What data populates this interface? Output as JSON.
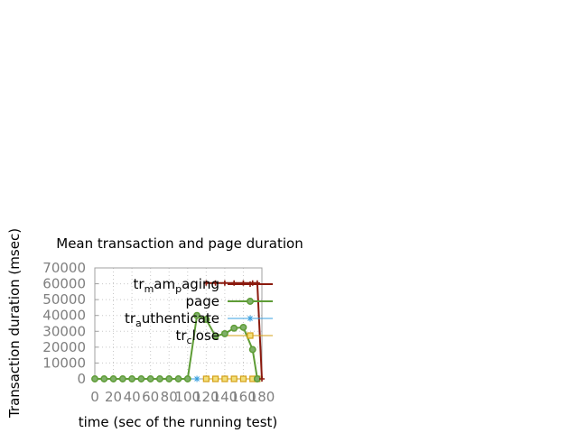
{
  "chart_data": {
    "type": "line",
    "title": "Mean transaction and page duration",
    "xlabel": "time (sec of the running test)",
    "ylabel": "Transaction duration (msec)",
    "xlim": [
      0,
      180
    ],
    "ylim": [
      0,
      70000
    ],
    "x_ticks": [
      "0",
      "20",
      "40",
      "60",
      "80",
      "100",
      "120",
      "140",
      "160",
      "180"
    ],
    "y_ticks": [
      "0",
      "10000",
      "20000",
      "30000",
      "40000",
      "50000",
      "60000",
      "70000"
    ],
    "grid": true,
    "legend_position": "top-right",
    "series": [
      {
        "name": "tr_mam_paging",
        "legend_parts": [
          [
            "tr",
            "normal"
          ],
          [
            "m",
            "sub"
          ],
          [
            "am",
            "normal"
          ],
          [
            "p",
            "sub"
          ],
          [
            "aging",
            "normal"
          ]
        ],
        "color": "#8b1a0e",
        "marker": "plus",
        "points": [
          [
            120,
            60500
          ],
          [
            130,
            60500
          ],
          [
            140,
            60500
          ],
          [
            150,
            60500
          ],
          [
            160,
            60500
          ],
          [
            170,
            60500
          ],
          [
            175,
            60500
          ],
          [
            180,
            0
          ]
        ]
      },
      {
        "name": "page",
        "legend_parts": [
          [
            "page",
            "normal"
          ]
        ],
        "color": "#5e9c36",
        "marker": "circle",
        "points": [
          [
            0,
            0
          ],
          [
            10,
            0
          ],
          [
            20,
            0
          ],
          [
            30,
            0
          ],
          [
            40,
            0
          ],
          [
            50,
            0
          ],
          [
            60,
            0
          ],
          [
            70,
            0
          ],
          [
            80,
            0
          ],
          [
            90,
            0
          ],
          [
            100,
            0
          ],
          [
            110,
            40000
          ],
          [
            120,
            37500
          ],
          [
            130,
            27000
          ],
          [
            140,
            28500
          ],
          [
            150,
            32000
          ],
          [
            160,
            32500
          ],
          [
            170,
            18500
          ],
          [
            175,
            0
          ]
        ]
      },
      {
        "name": "tr_authenticate",
        "legend_parts": [
          [
            "tr",
            "normal"
          ],
          [
            "a",
            "sub"
          ],
          [
            "uthenticate",
            "normal"
          ]
        ],
        "color": "#3aa0e0",
        "marker": "star",
        "points": [
          [
            0,
            0
          ],
          [
            10,
            0
          ],
          [
            20,
            0
          ],
          [
            30,
            0
          ],
          [
            40,
            0
          ],
          [
            50,
            0
          ],
          [
            60,
            0
          ],
          [
            70,
            0
          ],
          [
            80,
            0
          ],
          [
            90,
            0
          ],
          [
            100,
            0
          ],
          [
            110,
            0
          ]
        ]
      },
      {
        "name": "tr_close",
        "legend_parts": [
          [
            "tr",
            "normal"
          ],
          [
            "c",
            "sub"
          ],
          [
            "lose",
            "normal"
          ]
        ],
        "color": "#d4a017",
        "marker": "square",
        "points": [
          [
            120,
            0
          ],
          [
            130,
            0
          ],
          [
            140,
            0
          ],
          [
            150,
            0
          ],
          [
            160,
            0
          ],
          [
            170,
            0
          ],
          [
            175,
            0
          ]
        ]
      }
    ]
  }
}
